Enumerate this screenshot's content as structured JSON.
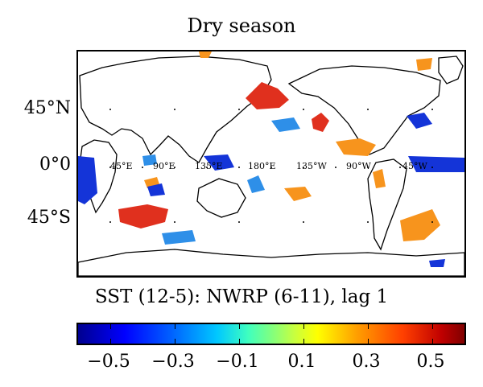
{
  "title": "Dry season",
  "caption": "SST (12-5): NWRP (6-11), lag 1",
  "lat_labels": [
    "45°N",
    "0°0",
    "45°S"
  ],
  "lon_labels": [
    "45°E",
    "90°E",
    "135°E",
    "180°E",
    "135°W",
    "90°W",
    "45°W"
  ],
  "colorbar": {
    "ticks": [
      "−0.5",
      "−0.3",
      "−0.1",
      "0.1",
      "0.3",
      "0.5"
    ],
    "tick_values": [
      -0.5,
      -0.3,
      -0.1,
      0.1,
      0.3,
      0.5
    ],
    "range": [
      -0.6,
      0.6
    ]
  },
  "colors": {
    "positive_strong": "#e0301e",
    "positive_weak": "#f7941d",
    "negative_strong": "#1434d8",
    "negative_weak": "#2e8fe8"
  }
}
